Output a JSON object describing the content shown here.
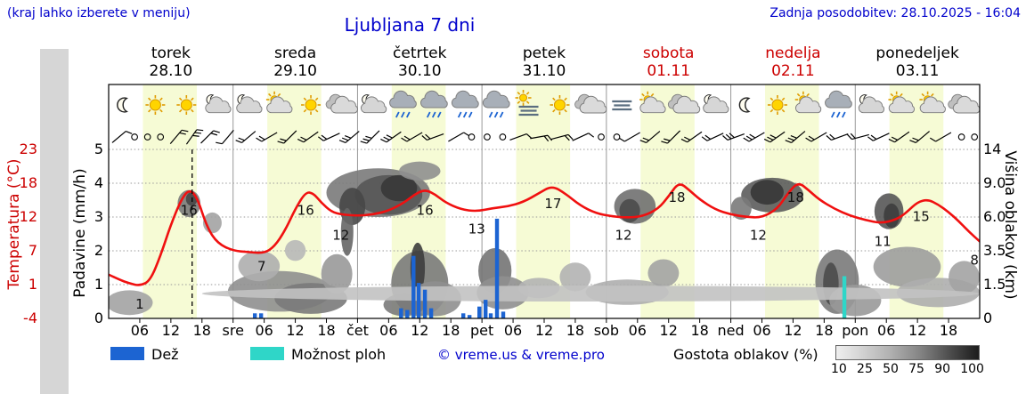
{
  "header": {
    "note": "(kraj lahko izberete v meniju)",
    "title": "Ljubljana 7 dni",
    "updated": "Zadnja posodobitev: 28.10.2025 - 16:04"
  },
  "axes": {
    "temperature_label": "Temperatura (°C)",
    "precipitation_label": "Padavine (mm/h)",
    "cloud_height_label": "Višina oblakov (km)",
    "temperature_ticks": [
      "23",
      "18",
      "12",
      "7",
      "1",
      "-4"
    ],
    "precipitation_ticks": [
      "5",
      "4",
      "3",
      "2",
      "1",
      "0"
    ],
    "cloud_ticks": [
      "14",
      "9.0",
      "6.0",
      "3.5",
      "1.5",
      "0"
    ]
  },
  "days": [
    {
      "name": "torek",
      "date": "28.10",
      "weekend": false
    },
    {
      "name": "sreda",
      "date": "29.10",
      "weekend": false
    },
    {
      "name": "četrtek",
      "date": "30.10",
      "weekend": false
    },
    {
      "name": "petek",
      "date": "31.10",
      "weekend": false
    },
    {
      "name": "sobota",
      "date": "01.11",
      "weekend": true
    },
    {
      "name": "nedelja",
      "date": "02.11",
      "weekend": true
    },
    {
      "name": "ponedeljek",
      "date": "03.11",
      "weekend": false
    }
  ],
  "x_ticks": [
    {
      "t": 6,
      "label": "06"
    },
    {
      "t": 12,
      "label": "12"
    },
    {
      "t": 18,
      "label": "18"
    },
    {
      "t": 24,
      "label": "sre"
    },
    {
      "t": 30,
      "label": "06"
    },
    {
      "t": 36,
      "label": "12"
    },
    {
      "t": 42,
      "label": "18"
    },
    {
      "t": 48,
      "label": "čet"
    },
    {
      "t": 54,
      "label": "06"
    },
    {
      "t": 60,
      "label": "12"
    },
    {
      "t": 66,
      "label": "18"
    },
    {
      "t": 72,
      "label": "pet"
    },
    {
      "t": 78,
      "label": "06"
    },
    {
      "t": 84,
      "label": "12"
    },
    {
      "t": 90,
      "label": "18"
    },
    {
      "t": 96,
      "label": "sob"
    },
    {
      "t": 102,
      "label": "06"
    },
    {
      "t": 108,
      "label": "12"
    },
    {
      "t": 114,
      "label": "18"
    },
    {
      "t": 120,
      "label": "ned"
    },
    {
      "t": 126,
      "label": "06"
    },
    {
      "t": 132,
      "label": "12"
    },
    {
      "t": 138,
      "label": "18"
    },
    {
      "t": 144,
      "label": "pon"
    },
    {
      "t": 150,
      "label": "06"
    },
    {
      "t": 156,
      "label": "12"
    },
    {
      "t": 162,
      "label": "18"
    }
  ],
  "legend": {
    "rain_label": "Dež",
    "showers_label": "Možnost ploh",
    "credit": "© vreme.us & vreme.pro",
    "cloud_density_label": "Gostota oblakov (%)",
    "density_ticks": [
      "10",
      "25",
      "50",
      "75",
      "90",
      "100"
    ]
  },
  "colors": {
    "blue_text": "#0000cc",
    "red_text": "#cc0000",
    "temp_line": "#f01010",
    "rain": "#1c64d2",
    "showers": "#2fd6c8",
    "day_band": "#f6fbd5"
  },
  "chart_data": {
    "type": "meteogram",
    "time_span_hours": 168,
    "now_t": 16.1,
    "daylight": [
      [
        6.6,
        17
      ],
      [
        30.6,
        41
      ],
      [
        54.6,
        65
      ],
      [
        78.6,
        89
      ],
      [
        102.6,
        113
      ],
      [
        126.6,
        137
      ],
      [
        150.6,
        161
      ]
    ],
    "temperature": {
      "unit": "°C",
      "series": [
        [
          0,
          3
        ],
        [
          2,
          2.2
        ],
        [
          4,
          1.6
        ],
        [
          6,
          1.2
        ],
        [
          8,
          2
        ],
        [
          10,
          6
        ],
        [
          12,
          11
        ],
        [
          14,
          15
        ],
        [
          15.5,
          16.6
        ],
        [
          17,
          15.5
        ],
        [
          19,
          10.5
        ],
        [
          21,
          8
        ],
        [
          24,
          6.8
        ],
        [
          27,
          6.6
        ],
        [
          30,
          6.4
        ],
        [
          32,
          7.5
        ],
        [
          34,
          10
        ],
        [
          36,
          13.5
        ],
        [
          38,
          16.2
        ],
        [
          39.5,
          16
        ],
        [
          41,
          14.5
        ],
        [
          43,
          13
        ],
        [
          45,
          12.6
        ],
        [
          48,
          12.4
        ],
        [
          51,
          12.6
        ],
        [
          54,
          13.2
        ],
        [
          57,
          14.5
        ],
        [
          59,
          15.8
        ],
        [
          61,
          16.6
        ],
        [
          63,
          15.8
        ],
        [
          65,
          14.5
        ],
        [
          68,
          13.4
        ],
        [
          71,
          13.1
        ],
        [
          74,
          13.6
        ],
        [
          77,
          13.9
        ],
        [
          80,
          14.6
        ],
        [
          83,
          16
        ],
        [
          85.5,
          17.2
        ],
        [
          88,
          16
        ],
        [
          91,
          14
        ],
        [
          94,
          12.8
        ],
        [
          97,
          12.3
        ],
        [
          100,
          12.1
        ],
        [
          103,
          12.3
        ],
        [
          106,
          13.5
        ],
        [
          108,
          15.5
        ],
        [
          110,
          17.8
        ],
        [
          112,
          16.5
        ],
        [
          114,
          15
        ],
        [
          117,
          13.4
        ],
        [
          120,
          12.6
        ],
        [
          123,
          12.2
        ],
        [
          126,
          12.1
        ],
        [
          129,
          13.5
        ],
        [
          131,
          16
        ],
        [
          133,
          17.8
        ],
        [
          135,
          16.5
        ],
        [
          137,
          15
        ],
        [
          140,
          13.5
        ],
        [
          143,
          12.4
        ],
        [
          146,
          11.7
        ],
        [
          149,
          11.2
        ],
        [
          152,
          11.8
        ],
        [
          154,
          13
        ],
        [
          156,
          14.6
        ],
        [
          158,
          15
        ],
        [
          160,
          14.2
        ],
        [
          162,
          13
        ],
        [
          164,
          11.5
        ],
        [
          166,
          9.8
        ],
        [
          168,
          8.3
        ]
      ],
      "labels": [
        {
          "t": 6,
          "v": 1,
          "label": "1"
        },
        {
          "t": 15.5,
          "v": 16,
          "label": "16"
        },
        {
          "t": 29.5,
          "v": 7,
          "label": "7"
        },
        {
          "t": 38,
          "v": 16,
          "label": "16"
        },
        {
          "t": 44.8,
          "v": 12,
          "label": "12"
        },
        {
          "t": 61,
          "v": 16,
          "label": "16"
        },
        {
          "t": 71,
          "v": 13,
          "label": "13"
        },
        {
          "t": 85.7,
          "v": 17,
          "label": "17"
        },
        {
          "t": 99.3,
          "v": 12,
          "label": "12"
        },
        {
          "t": 109.6,
          "v": 18,
          "label": "18"
        },
        {
          "t": 125.3,
          "v": 12,
          "label": "12"
        },
        {
          "t": 132.5,
          "v": 18,
          "label": "18"
        },
        {
          "t": 149.3,
          "v": 11,
          "label": "11"
        },
        {
          "t": 156.7,
          "v": 15,
          "label": "15"
        },
        {
          "t": 167,
          "v": 8,
          "label": "8"
        }
      ]
    },
    "precipitation": {
      "unit": "mm/h",
      "rain": [
        [
          28.2,
          0.15
        ],
        [
          29.4,
          0.15
        ],
        [
          56.4,
          0.3
        ],
        [
          57.6,
          0.25
        ],
        [
          58.8,
          1.85
        ],
        [
          59.8,
          1.05
        ],
        [
          61,
          0.85
        ],
        [
          62.2,
          0.3
        ],
        [
          68.4,
          0.15
        ],
        [
          69.6,
          0.1
        ],
        [
          71.5,
          0.35
        ],
        [
          72.7,
          0.55
        ],
        [
          73.7,
          0.15
        ],
        [
          74.9,
          2.95
        ],
        [
          76.1,
          0.2
        ]
      ],
      "showers": [
        [
          141.9,
          1.25
        ]
      ]
    },
    "clouds": [
      [
        4,
        0.7,
        4.5,
        0.55,
        35
      ],
      [
        15.5,
        7.2,
        2.2,
        1.2,
        55
      ],
      [
        16,
        7.6,
        1.1,
        0.6,
        80
      ],
      [
        20,
        5.6,
        1.8,
        0.8,
        35
      ],
      [
        33,
        1.3,
        10,
        1.0,
        45
      ],
      [
        39,
        0.9,
        7,
        0.7,
        55
      ],
      [
        29,
        2.6,
        4,
        0.9,
        30
      ],
      [
        44,
        2.2,
        3,
        1.1,
        40
      ],
      [
        36,
        3.6,
        2,
        0.7,
        25
      ],
      [
        52,
        8.6,
        10,
        2.6,
        55
      ],
      [
        54,
        8.2,
        6.5,
        2.0,
        72
      ],
      [
        56,
        8.8,
        3.5,
        1.4,
        88
      ],
      [
        47,
        7.0,
        2.5,
        1.6,
        80
      ],
      [
        46,
        5.0,
        1.2,
        1.8,
        65
      ],
      [
        60,
        10.8,
        4,
        1.4,
        45
      ],
      [
        60,
        1.8,
        5.5,
        1.7,
        55
      ],
      [
        59.6,
        2.6,
        1.4,
        1.5,
        85
      ],
      [
        63,
        0.9,
        5,
        0.8,
        45
      ],
      [
        57,
        0.6,
        4,
        0.5,
        55
      ],
      [
        74.5,
        2.4,
        3.2,
        1.3,
        58
      ],
      [
        76,
        1.2,
        5,
        0.8,
        45
      ],
      [
        83,
        1.4,
        4,
        0.5,
        28
      ],
      [
        90,
        2.0,
        3,
        0.8,
        28
      ],
      [
        101.5,
        7.0,
        4.0,
        1.5,
        60
      ],
      [
        100.5,
        6.6,
        2.0,
        1.0,
        78
      ],
      [
        100,
        1.2,
        8,
        0.6,
        30
      ],
      [
        107,
        2.2,
        3,
        0.8,
        35
      ],
      [
        128,
        8.1,
        6.0,
        1.7,
        70
      ],
      [
        127,
        8.3,
        3.2,
        1.2,
        88
      ],
      [
        122,
        6.8,
        2,
        1.0,
        55
      ],
      [
        140.5,
        1.9,
        4.2,
        1.7,
        55
      ],
      [
        139.3,
        1.7,
        1.5,
        1.1,
        78
      ],
      [
        144,
        0.8,
        5,
        0.7,
        40
      ],
      [
        150.5,
        6.6,
        2.8,
        1.5,
        72
      ],
      [
        151,
        6.2,
        1.5,
        1.0,
        85
      ],
      [
        154,
        2.6,
        6.5,
        1.2,
        38
      ],
      [
        160,
        1.2,
        8,
        0.7,
        30
      ],
      [
        165,
        2.0,
        3,
        0.9,
        35
      ],
      [
        93,
        1.1,
        75,
        0.35,
        20
      ]
    ],
    "icons": [
      [
        3,
        "moon"
      ],
      [
        9,
        "sun"
      ],
      [
        15,
        "sun"
      ],
      [
        21,
        "moon-cloud"
      ],
      [
        27,
        "moon-cloud"
      ],
      [
        33,
        "part-sun"
      ],
      [
        39,
        "sun"
      ],
      [
        45,
        "cloud"
      ],
      [
        51,
        "moon-cloud"
      ],
      [
        57,
        "rain"
      ],
      [
        63,
        "rain"
      ],
      [
        69,
        "rain"
      ],
      [
        75,
        "rain"
      ],
      [
        81,
        "fog-sun"
      ],
      [
        87,
        "sun"
      ],
      [
        93,
        "cloud"
      ],
      [
        99,
        "fog"
      ],
      [
        105,
        "part-sun"
      ],
      [
        111,
        "cloud"
      ],
      [
        117,
        "moon-cloud"
      ],
      [
        123,
        "moon"
      ],
      [
        129,
        "sun"
      ],
      [
        135,
        "part-sun"
      ],
      [
        141,
        "rain"
      ],
      [
        147,
        "moon-cloud"
      ],
      [
        153,
        "part-sun"
      ],
      [
        159,
        "part-sun"
      ],
      [
        165,
        "cloud"
      ]
    ],
    "wind": [
      [
        2,
        50,
        1
      ],
      [
        5,
        0,
        0
      ],
      [
        7.5,
        0,
        0
      ],
      [
        10,
        0,
        0
      ],
      [
        13,
        40,
        2
      ],
      [
        16,
        35,
        3
      ],
      [
        19,
        45,
        2
      ],
      [
        23,
        220,
        1
      ],
      [
        27,
        230,
        2
      ],
      [
        31,
        240,
        2
      ],
      [
        35,
        225,
        2
      ],
      [
        39,
        235,
        2
      ],
      [
        43,
        245,
        2
      ],
      [
        47,
        230,
        3
      ],
      [
        51,
        225,
        3
      ],
      [
        55,
        235,
        3
      ],
      [
        59,
        240,
        2
      ],
      [
        63,
        250,
        2
      ],
      [
        67,
        60,
        1
      ],
      [
        70,
        0,
        0
      ],
      [
        73,
        0,
        0
      ],
      [
        76,
        0,
        0
      ],
      [
        79,
        70,
        1
      ],
      [
        83,
        80,
        2
      ],
      [
        87,
        75,
        2
      ],
      [
        91,
        65,
        1
      ],
      [
        95,
        0,
        0
      ],
      [
        98,
        0,
        0
      ],
      [
        101,
        240,
        1
      ],
      [
        105,
        230,
        2
      ],
      [
        109,
        225,
        2
      ],
      [
        113,
        235,
        2
      ],
      [
        117,
        245,
        2
      ],
      [
        121,
        250,
        3
      ],
      [
        125,
        240,
        3
      ],
      [
        129,
        235,
        3
      ],
      [
        133,
        230,
        3
      ],
      [
        137,
        240,
        2
      ],
      [
        141,
        250,
        2
      ],
      [
        145,
        255,
        2
      ],
      [
        149,
        245,
        2
      ],
      [
        153,
        235,
        2
      ],
      [
        157,
        230,
        2
      ],
      [
        161,
        240,
        1
      ],
      [
        164.5,
        0,
        0
      ],
      [
        167,
        0,
        0
      ]
    ]
  }
}
